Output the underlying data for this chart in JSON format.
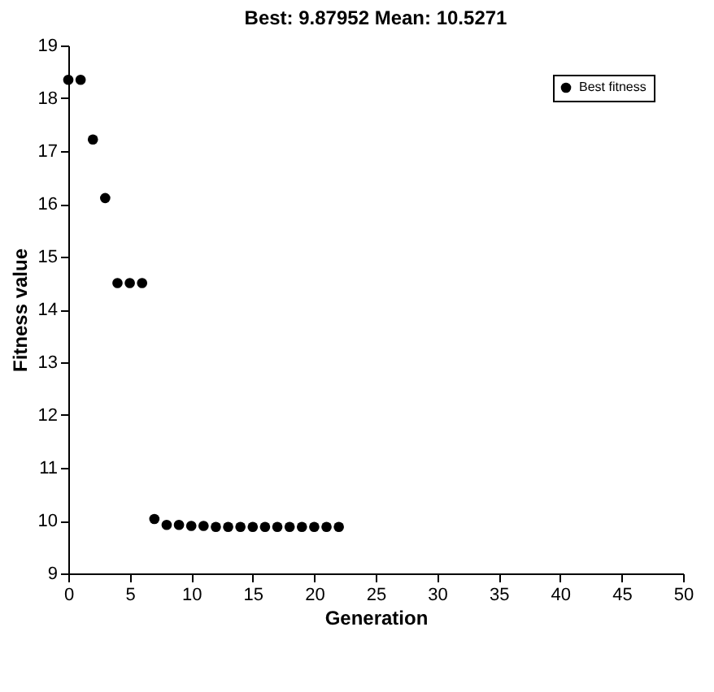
{
  "chart_data": {
    "type": "scatter",
    "title": "Best: 9.87952 Mean: 10.5271",
    "xlabel": "Generation",
    "ylabel": "Fitness value",
    "x": [
      0,
      1,
      2,
      3,
      4,
      5,
      6,
      7,
      8,
      9,
      10,
      11,
      12,
      13,
      14,
      15,
      16,
      17,
      18,
      19,
      20,
      21,
      22
    ],
    "series": [
      {
        "name": "Best fitness",
        "color": "#000000",
        "values": [
          18.35,
          18.35,
          17.22,
          16.11,
          14.5,
          14.5,
          14.5,
          10.03,
          9.92,
          9.92,
          9.9,
          9.9,
          9.88,
          9.88,
          9.88,
          9.88,
          9.88,
          9.88,
          9.88,
          9.88,
          9.88,
          9.88,
          9.88
        ]
      }
    ],
    "xlim": [
      0,
      50
    ],
    "xticks": [
      0,
      5,
      10,
      15,
      20,
      25,
      30,
      35,
      40,
      45,
      50
    ],
    "ylim": [
      9,
      19
    ],
    "yticks": [
      9,
      10,
      11,
      12,
      13,
      14,
      15,
      16,
      17,
      18,
      19
    ],
    "grid": false,
    "legend": "top right",
    "marker": "circle"
  }
}
